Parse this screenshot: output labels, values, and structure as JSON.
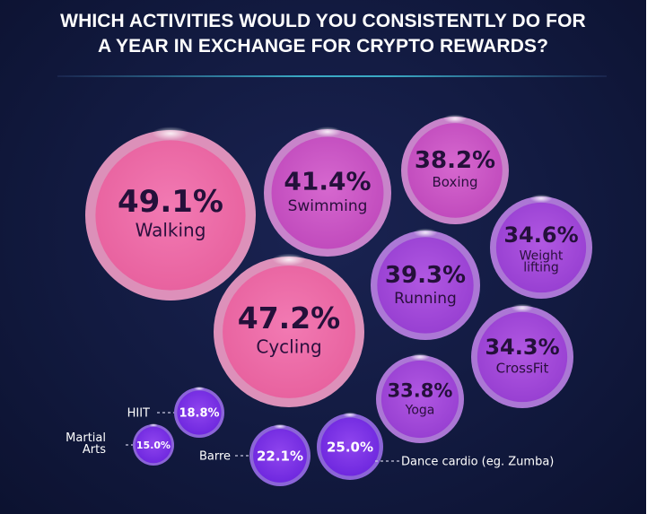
{
  "title": {
    "line1": "WHICH ACTIVITIES WOULD YOU CONSISTENTLY DO FOR",
    "line2": "A YEAR IN EXCHANGE FOR CRYPTO REWARDS?"
  },
  "colors": {
    "accent_rule": "#3aa9c4",
    "pink": "#e8629f",
    "magenta": "#c94fc3",
    "purple": "#9d3fd6",
    "violet": "#7a2ee6",
    "background": "#121a40"
  },
  "chart_data": {
    "type": "bubble",
    "title": "WHICH ACTIVITIES WOULD YOU CONSISTENTLY DO FOR A YEAR IN EXCHANGE FOR CRYPTO REWARDS?",
    "unit": "%",
    "points": [
      {
        "label": "Walking",
        "value": 49.1,
        "display": "49.1%"
      },
      {
        "label": "Cycling",
        "value": 47.2,
        "display": "47.2%"
      },
      {
        "label": "Swimming",
        "value": 41.4,
        "display": "41.4%"
      },
      {
        "label": "Running",
        "value": 39.3,
        "display": "39.3%"
      },
      {
        "label": "Boxing",
        "value": 38.2,
        "display": "38.2%"
      },
      {
        "label": "Weight lifting",
        "value": 34.6,
        "display": "34.6%"
      },
      {
        "label": "CrossFit",
        "value": 34.3,
        "display": "34.3%"
      },
      {
        "label": "Yoga",
        "value": 33.8,
        "display": "33.8%"
      },
      {
        "label": "Dance cardio (eg. Zumba)",
        "value": 25.0,
        "display": "25.0%"
      },
      {
        "label": "Barre",
        "value": 22.1,
        "display": "22.1%"
      },
      {
        "label": "HIIT",
        "value": 18.8,
        "display": "18.8%"
      },
      {
        "label": "Martial Arts",
        "value": 15.0,
        "display": "15.0%"
      }
    ]
  }
}
